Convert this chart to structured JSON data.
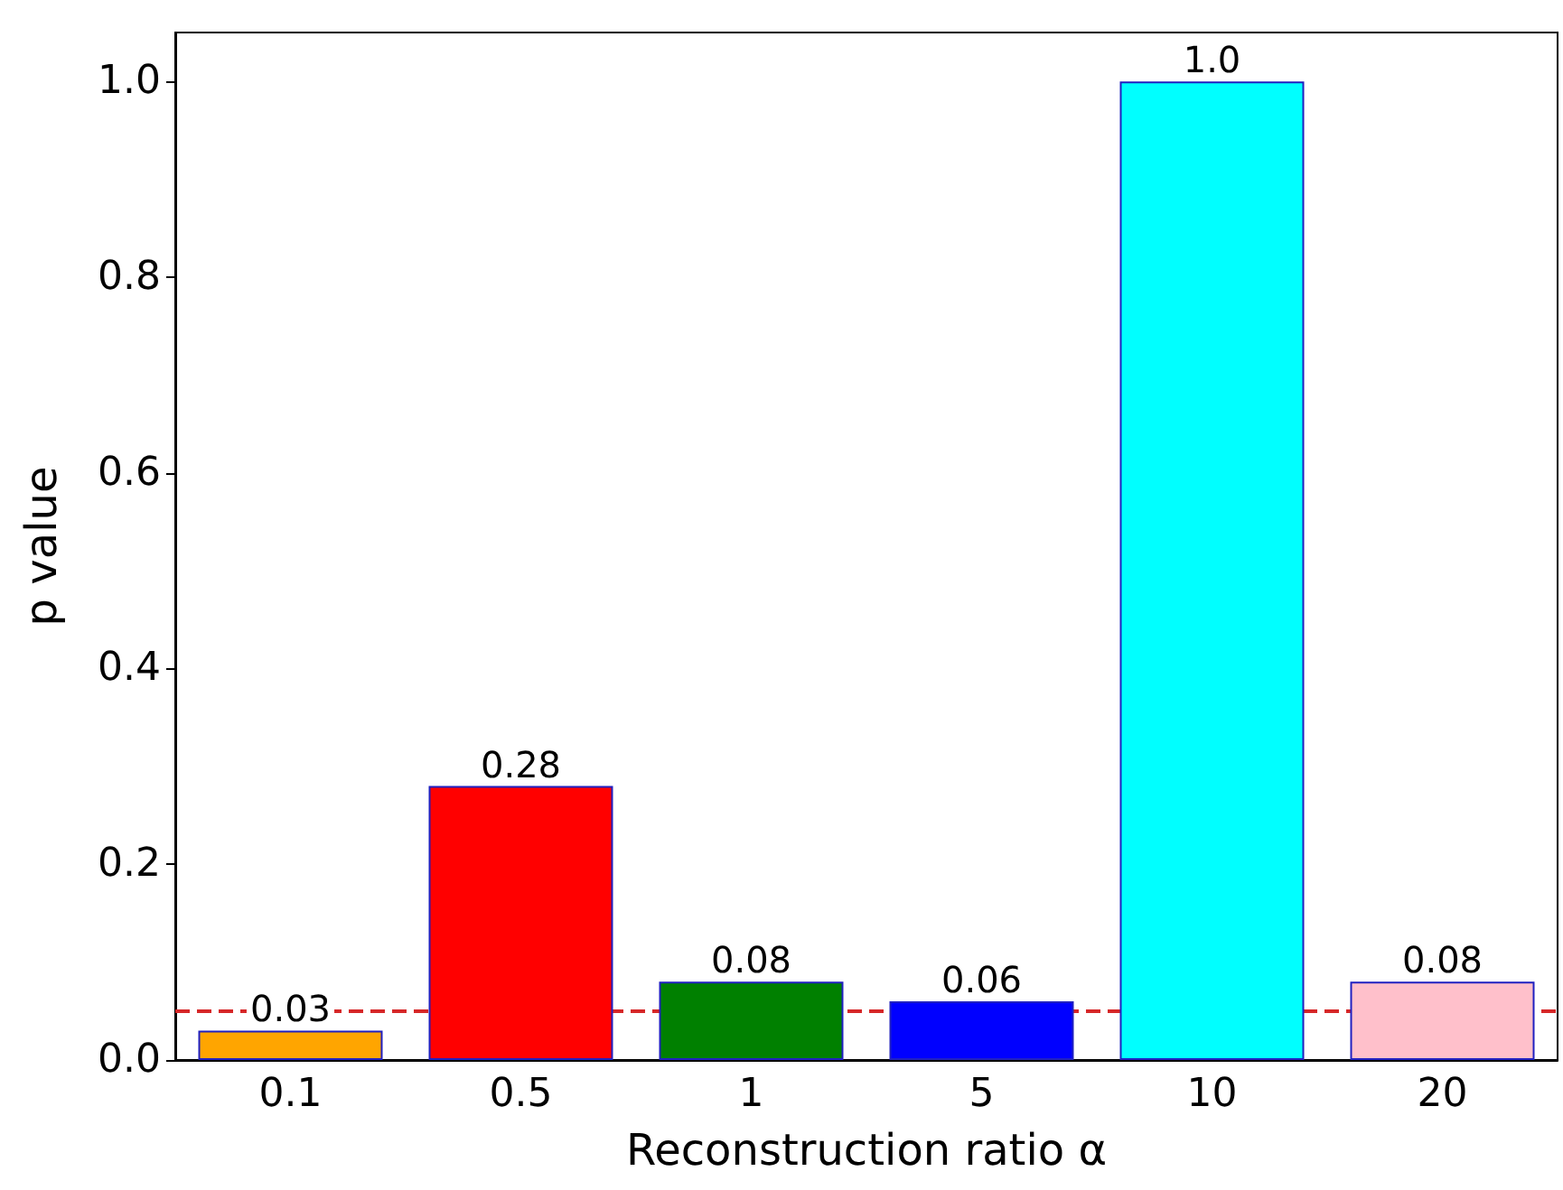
{
  "chart_data": {
    "type": "bar",
    "xlabel": "Reconstruction ratio α",
    "ylabel": "p value",
    "categories": [
      "0.1",
      "0.5",
      "1",
      "5",
      "10",
      "20"
    ],
    "values": [
      0.03,
      0.28,
      0.08,
      0.06,
      1.0,
      0.08
    ],
    "colors": [
      "#ffa500",
      "#ff0000",
      "#008000",
      "#0000ff",
      "#00ffff",
      "#ffc0cb"
    ],
    "value_labels": [
      "0.03",
      "0.28",
      "0.08",
      "0.06",
      "1.0",
      "0.08"
    ],
    "ylim": [
      0,
      1.05
    ],
    "yticks": [
      {
        "value": 0,
        "label": "0.0"
      },
      {
        "value": 0.2,
        "label": "0.2"
      },
      {
        "value": 0.4,
        "label": "0.4"
      },
      {
        "value": 0.6,
        "label": "0.6"
      },
      {
        "value": 0.8,
        "label": "0.8"
      },
      {
        "value": 1,
        "label": "1.0"
      }
    ],
    "ref_lines": [
      {
        "axis": "y",
        "value": 0.05,
        "label": null,
        "color": "#d62728",
        "line_style": "dashed"
      }
    ],
    "grid": false
  }
}
